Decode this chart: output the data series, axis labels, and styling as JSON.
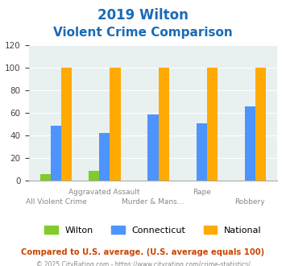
{
  "title_line1": "2019 Wilton",
  "title_line2": "Violent Crime Comparison",
  "series": {
    "Wilton": [
      6,
      9,
      0,
      0,
      0
    ],
    "Connecticut": [
      49,
      42,
      59,
      51,
      66
    ],
    "National": [
      100,
      100,
      100,
      100,
      100
    ]
  },
  "colors": {
    "Wilton": "#80cc28",
    "Connecticut": "#4d94ff",
    "National": "#ffaa00"
  },
  "ylim": [
    0,
    120
  ],
  "yticks": [
    0,
    20,
    40,
    60,
    80,
    100,
    120
  ],
  "background_color": "#e8f0f0",
  "title_color": "#1a6bb5",
  "footer_text": "Compared to U.S. average. (U.S. average equals 100)",
  "footer_color": "#cc4400",
  "credit_text": "© 2025 CityRating.com - https://www.cityrating.com/crime-statistics/",
  "credit_color": "#888888",
  "bar_width": 0.22,
  "group_positions": [
    0,
    1,
    2,
    3,
    4
  ],
  "x_labels_high": [
    [
      1,
      "Aggravated Assault"
    ],
    [
      3,
      "Rape"
    ]
  ],
  "x_labels_low": [
    [
      0,
      "All Violent Crime"
    ],
    [
      2,
      "Murder & Mans..."
    ],
    [
      4,
      "Robbery"
    ]
  ]
}
